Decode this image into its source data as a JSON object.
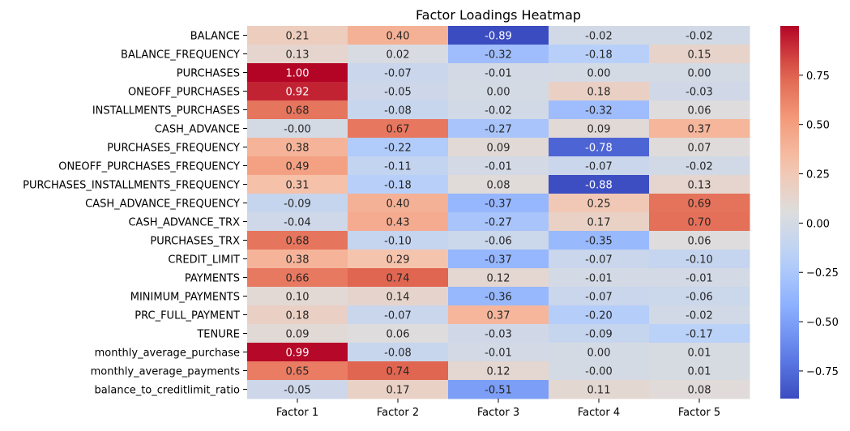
{
  "chart_data": {
    "type": "heatmap",
    "title": "Factor Loadings Heatmap",
    "xlabel": "",
    "ylabel": "",
    "columns": [
      "Factor 1",
      "Factor 2",
      "Factor 3",
      "Factor 4",
      "Factor 5"
    ],
    "rows": [
      "BALANCE",
      "BALANCE_FREQUENCY",
      "PURCHASES",
      "ONEOFF_PURCHASES",
      "INSTALLMENTS_PURCHASES",
      "CASH_ADVANCE",
      "PURCHASES_FREQUENCY",
      "ONEOFF_PURCHASES_FREQUENCY",
      "PURCHASES_INSTALLMENTS_FREQUENCY",
      "CASH_ADVANCE_FREQUENCY",
      "CASH_ADVANCE_TRX",
      "PURCHASES_TRX",
      "CREDIT_LIMIT",
      "PAYMENTS",
      "MINIMUM_PAYMENTS",
      "PRC_FULL_PAYMENT",
      "TENURE",
      "monthly_average_purchase",
      "monthly_average_payments",
      "balance_to_creditlimit_ratio"
    ],
    "values": [
      [
        0.21,
        0.4,
        -0.89,
        -0.02,
        -0.02
      ],
      [
        0.13,
        0.02,
        -0.32,
        -0.18,
        0.15
      ],
      [
        1.0,
        -0.07,
        -0.01,
        0.0,
        0.0
      ],
      [
        0.92,
        -0.05,
        0.0,
        0.18,
        -0.03
      ],
      [
        0.68,
        -0.08,
        -0.02,
        -0.32,
        0.06
      ],
      [
        -0.0,
        0.67,
        -0.27,
        0.09,
        0.37
      ],
      [
        0.38,
        -0.22,
        0.09,
        -0.78,
        0.07
      ],
      [
        0.49,
        -0.11,
        -0.01,
        -0.07,
        -0.02
      ],
      [
        0.31,
        -0.18,
        0.08,
        -0.88,
        0.13
      ],
      [
        -0.09,
        0.4,
        -0.37,
        0.25,
        0.69
      ],
      [
        -0.04,
        0.43,
        -0.27,
        0.17,
        0.7
      ],
      [
        0.68,
        -0.1,
        -0.06,
        -0.35,
        0.06
      ],
      [
        0.38,
        0.29,
        -0.37,
        -0.07,
        -0.1
      ],
      [
        0.66,
        0.74,
        0.12,
        -0.01,
        -0.01
      ],
      [
        0.1,
        0.14,
        -0.36,
        -0.07,
        -0.06
      ],
      [
        0.18,
        -0.07,
        0.37,
        -0.2,
        -0.02
      ],
      [
        0.09,
        0.06,
        -0.03,
        -0.09,
        -0.17
      ],
      [
        0.99,
        -0.08,
        -0.01,
        0.0,
        0.01
      ],
      [
        0.65,
        0.74,
        0.12,
        -0.0,
        0.01
      ],
      [
        -0.05,
        0.17,
        -0.51,
        0.11,
        0.08
      ]
    ],
    "value_labels": [
      [
        "0.21",
        "0.40",
        "-0.89",
        "-0.02",
        "-0.02"
      ],
      [
        "0.13",
        "0.02",
        "-0.32",
        "-0.18",
        "0.15"
      ],
      [
        "1.00",
        "-0.07",
        "-0.01",
        "0.00",
        "0.00"
      ],
      [
        "0.92",
        "-0.05",
        "0.00",
        "0.18",
        "-0.03"
      ],
      [
        "0.68",
        "-0.08",
        "-0.02",
        "-0.32",
        "0.06"
      ],
      [
        "-0.00",
        "0.67",
        "-0.27",
        "0.09",
        "0.37"
      ],
      [
        "0.38",
        "-0.22",
        "0.09",
        "-0.78",
        "0.07"
      ],
      [
        "0.49",
        "-0.11",
        "-0.01",
        "-0.07",
        "-0.02"
      ],
      [
        "0.31",
        "-0.18",
        "0.08",
        "-0.88",
        "0.13"
      ],
      [
        "-0.09",
        "0.40",
        "-0.37",
        "0.25",
        "0.69"
      ],
      [
        "-0.04",
        "0.43",
        "-0.27",
        "0.17",
        "0.70"
      ],
      [
        "0.68",
        "-0.10",
        "-0.06",
        "-0.35",
        "0.06"
      ],
      [
        "0.38",
        "0.29",
        "-0.37",
        "-0.07",
        "-0.10"
      ],
      [
        "0.66",
        "0.74",
        "0.12",
        "-0.01",
        "-0.01"
      ],
      [
        "0.10",
        "0.14",
        "-0.36",
        "-0.07",
        "-0.06"
      ],
      [
        "0.18",
        "-0.07",
        "0.37",
        "-0.20",
        "-0.02"
      ],
      [
        "0.09",
        "0.06",
        "-0.03",
        "-0.09",
        "-0.17"
      ],
      [
        "0.99",
        "-0.08",
        "-0.01",
        "0.00",
        "0.01"
      ],
      [
        "0.65",
        "0.74",
        "0.12",
        "-0.00",
        "0.01"
      ],
      [
        "-0.05",
        "0.17",
        "-0.51",
        "0.11",
        "0.08"
      ]
    ],
    "colorscale": "coolwarm",
    "color_range": [
      -0.89,
      1.0
    ],
    "colorbar": {
      "ticks": [
        0.75,
        0.5,
        0.25,
        0.0,
        -0.25,
        -0.5,
        -0.75
      ],
      "tick_labels": [
        "0.75",
        "0.50",
        "0.25",
        "0.00",
        "−0.25",
        "−0.50",
        "−0.75"
      ]
    },
    "grid": false,
    "annotated": true
  }
}
